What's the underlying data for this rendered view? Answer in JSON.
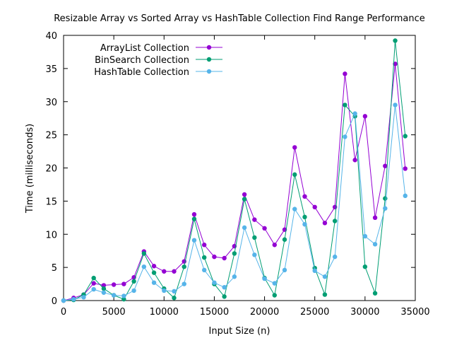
{
  "chart_data": {
    "type": "line",
    "title": "Resizable Array vs Sorted Array vs HashTable Collection Find Range Performance",
    "xlabel": "Input Size (n)",
    "ylabel": "Time (milliseconds)",
    "xlim": [
      0,
      35000
    ],
    "ylim": [
      0,
      40
    ],
    "xticks": [
      0,
      5000,
      10000,
      15000,
      20000,
      25000,
      30000,
      35000
    ],
    "yticks": [
      0,
      5,
      10,
      15,
      20,
      25,
      30,
      35,
      40
    ],
    "grid": false,
    "legend_position": "top-left",
    "x": [
      0,
      1000,
      2000,
      3000,
      4000,
      5000,
      6000,
      7000,
      8000,
      9000,
      10000,
      11000,
      12000,
      13000,
      14000,
      15000,
      16000,
      17000,
      18000,
      19000,
      20000,
      21000,
      22000,
      23000,
      24000,
      25000,
      26000,
      27000,
      28000,
      29000,
      30000,
      31000,
      32000,
      33000,
      34000
    ],
    "series": [
      {
        "name": "ArrayList Collection",
        "color": "#9400d3",
        "values": [
          0,
          0.4,
          0.9,
          2.6,
          2.3,
          2.4,
          2.5,
          3.5,
          7.4,
          5.2,
          4.4,
          4.4,
          5.9,
          13.0,
          8.4,
          6.6,
          6.4,
          8.2,
          16.0,
          12.2,
          10.9,
          8.4,
          10.7,
          23.1,
          15.7,
          14.1,
          11.7,
          14.1,
          34.2,
          21.2,
          27.8,
          12.5,
          20.3,
          35.7,
          19.9
        ]
      },
      {
        "name": "BinSearch Collection",
        "color": "#009e73",
        "values": [
          0,
          0.1,
          0.9,
          3.4,
          1.8,
          0.8,
          0.2,
          2.9,
          7.1,
          4.2,
          1.8,
          0.4,
          5.1,
          12.3,
          6.5,
          2.5,
          0.6,
          7.1,
          15.3,
          9.5,
          3.4,
          0.8,
          9.2,
          19.0,
          12.6,
          4.9,
          0.9,
          12.0,
          29.5,
          27.8,
          5.1,
          1.1,
          15.4,
          39.2,
          24.8
        ]
      },
      {
        "name": "HashTable Collection",
        "color": "#56b4e9",
        "values": [
          0,
          0.2,
          0.5,
          1.7,
          1.2,
          0.8,
          0.7,
          1.5,
          5.1,
          2.7,
          1.5,
          1.4,
          2.5,
          9.1,
          4.6,
          2.7,
          2.0,
          3.6,
          11.0,
          6.9,
          3.3,
          2.6,
          4.6,
          13.8,
          11.5,
          4.5,
          3.6,
          6.6,
          24.7,
          28.2,
          9.7,
          8.5,
          13.9,
          29.5,
          15.8
        ]
      }
    ]
  }
}
